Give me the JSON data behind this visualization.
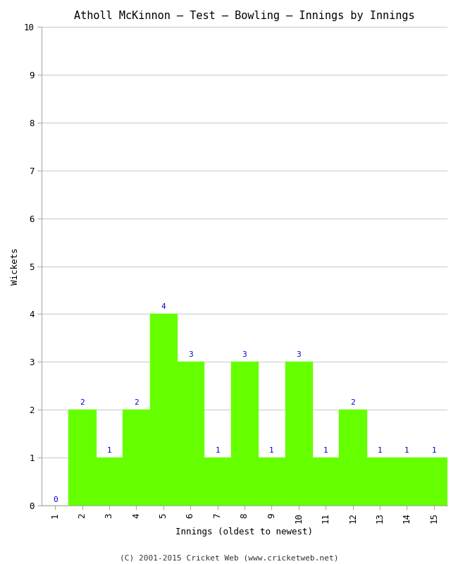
{
  "title": "Atholl McKinnon – Test – Bowling – Innings by Innings",
  "xlabel": "Innings (oldest to newest)",
  "ylabel": "Wickets",
  "innings": [
    1,
    2,
    3,
    4,
    5,
    6,
    7,
    8,
    9,
    10,
    11,
    12,
    13,
    14,
    15
  ],
  "wickets": [
    0,
    2,
    1,
    2,
    4,
    3,
    1,
    3,
    1,
    3,
    1,
    2,
    1,
    1,
    1
  ],
  "bar_color": "#66ff00",
  "bar_edge_color": "#66ff00",
  "ylim": [
    0,
    10
  ],
  "yticks": [
    0,
    1,
    2,
    3,
    4,
    5,
    6,
    7,
    8,
    9,
    10
  ],
  "xticks": [
    1,
    2,
    3,
    4,
    5,
    6,
    7,
    8,
    9,
    10,
    11,
    12,
    13,
    14,
    15
  ],
  "label_color": "#0000cc",
  "background_color": "#ffffff",
  "grid_color": "#cccccc",
  "title_fontsize": 11,
  "axis_label_fontsize": 9,
  "tick_fontsize": 9,
  "value_label_fontsize": 8,
  "footer_text": "(C) 2001-2015 Cricket Web (www.cricketweb.net)",
  "footer_fontsize": 8
}
